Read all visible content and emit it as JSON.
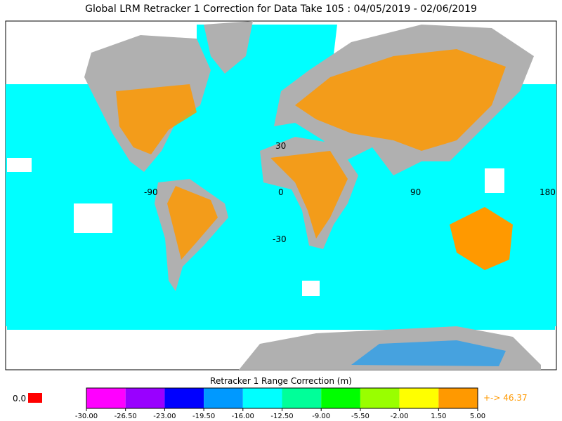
{
  "title": "Global LRM Retracker 1 Correction for Data Take 105 : 04/05/2019 - 02/06/2019",
  "map": {
    "longitude_labels": [
      "-90",
      "0",
      "90",
      "180"
    ],
    "latitude_labels": [
      "30",
      "-30"
    ]
  },
  "legend": {
    "title": "Retracker 1 Range Correction (m)",
    "ticks": [
      {
        "value": -30,
        "label": "-30.00"
      },
      {
        "value": -26.5,
        "label": "-26.50"
      },
      {
        "value": -23,
        "label": "-23.00"
      },
      {
        "value": -19.5,
        "label": "-19.50"
      },
      {
        "value": -16,
        "label": "-16.00"
      },
      {
        "value": -12.5,
        "label": "-12.50"
      },
      {
        "value": -9,
        "label": "-9.00"
      },
      {
        "value": -5.5,
        "label": "-5.50"
      },
      {
        "value": -2,
        "label": "-2.00"
      },
      {
        "value": 1.5,
        "label": "1.50"
      },
      {
        "value": 5,
        "label": "5.00"
      }
    ],
    "colors": [
      "#ff00ff",
      "#9900ff",
      "#0000ff",
      "#0099ff",
      "#00ffff",
      "#00ff99",
      "#00ff00",
      "#99ff00",
      "#ffff00",
      "#ff9900"
    ],
    "nodata_label": "0.0",
    "nodata_color": "#ff0000",
    "overflow_label": "+-> 46.37"
  }
}
